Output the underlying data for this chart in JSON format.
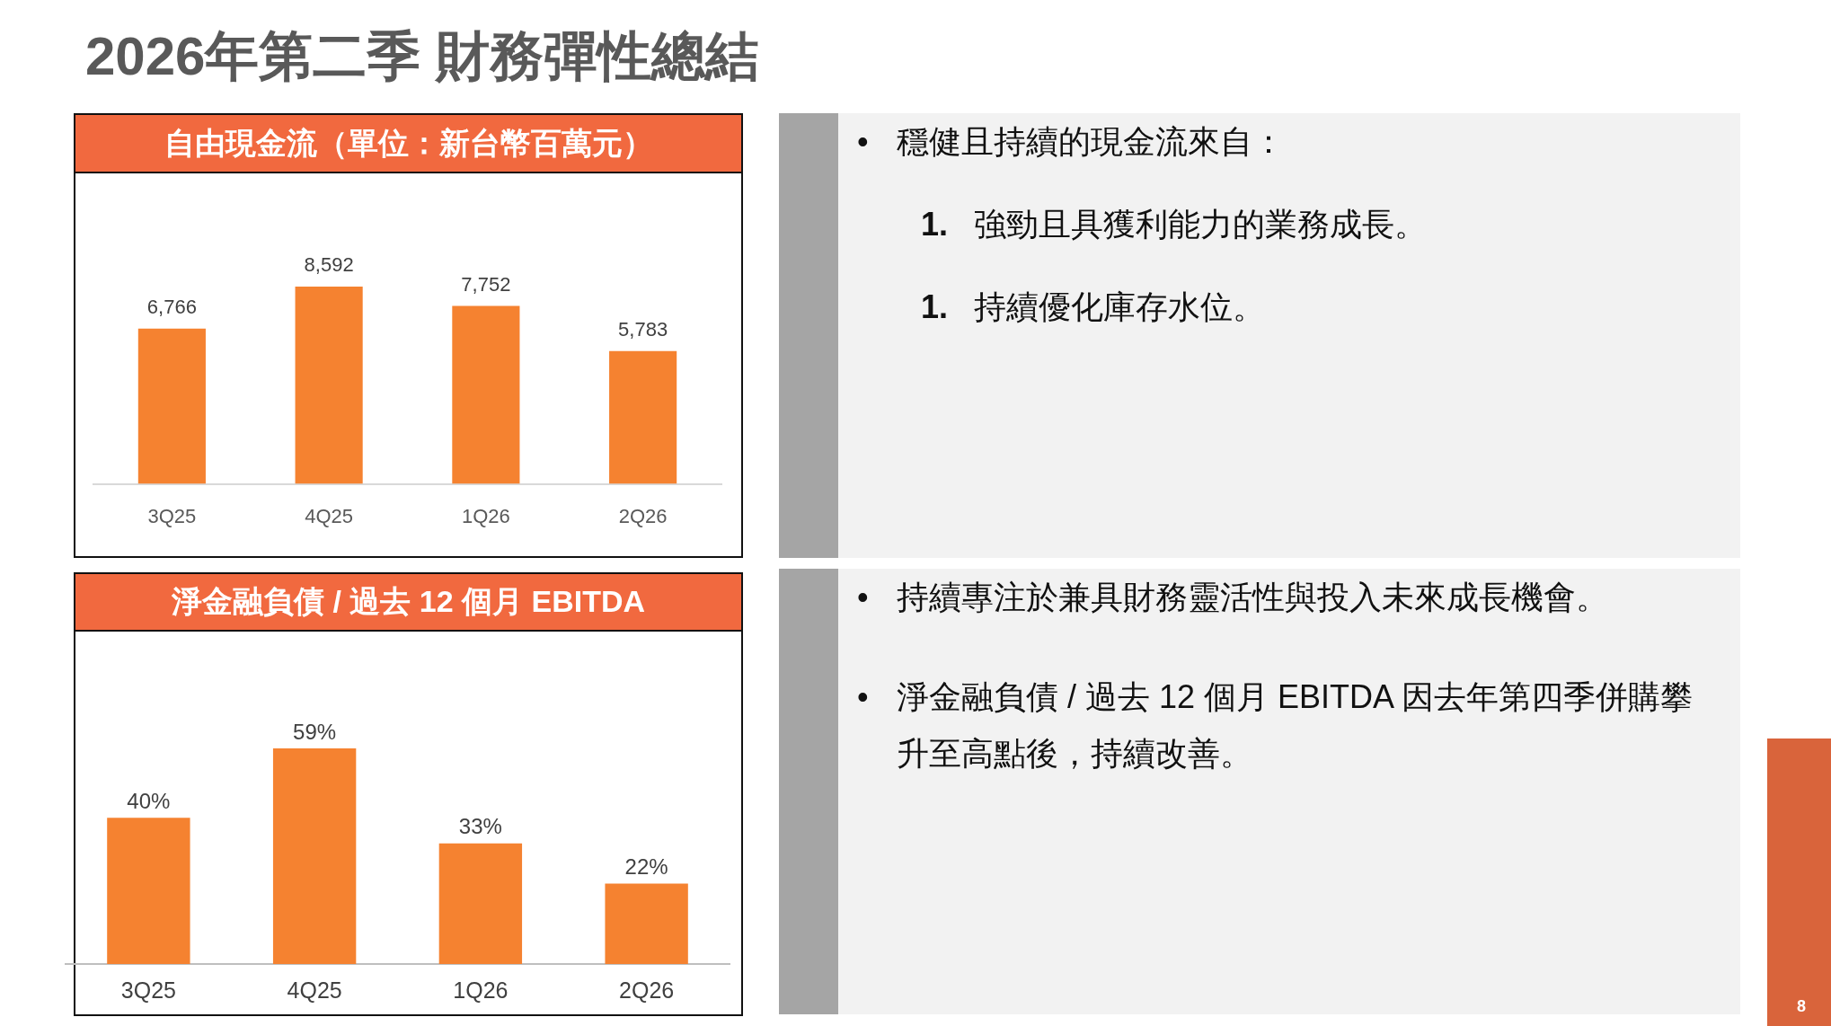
{
  "chart_data": [
    {
      "type": "other",
      "title": "2026年第二季 財務彈性總結",
      "annotations": [
        "8"
      ]
    },
    {
      "type": "bar",
      "title": "自由現金流（單位：新台幣百萬元）",
      "categories": [
        "3Q25",
        "4Q25",
        "1Q26",
        "2Q26"
      ],
      "values": [
        6766,
        8592,
        7752,
        5783
      ],
      "value_labels": [
        "6,766",
        "8,592",
        "7,752",
        "5,783"
      ],
      "color": "#f58230"
    },
    {
      "type": "other",
      "annotations": [
        "• 穩健且持續的現金流來自：",
        "1. 強勁且具獲利能力的業務成長。",
        "1. 持續優化庫存水位。"
      ]
    },
    {
      "type": "bar",
      "title": "淨金融負債 / 過去 12 個月 EBITDA",
      "categories": [
        "3Q25",
        "4Q25",
        "1Q26",
        "2Q26"
      ],
      "values": [
        40,
        59,
        33,
        22
      ],
      "value_labels": [
        "40%",
        "59%",
        "33%",
        "22%"
      ],
      "color": "#f58230"
    },
    {
      "type": "other",
      "annotations": [
        "• 持續專注於兼具財務靈活性與投入未來成長機會。",
        "• 淨金融負債 / 過去 12 個月 EBITDA 因去年第四季併購攀升至高點後，持續改善。"
      ]
    }
  ]
}
